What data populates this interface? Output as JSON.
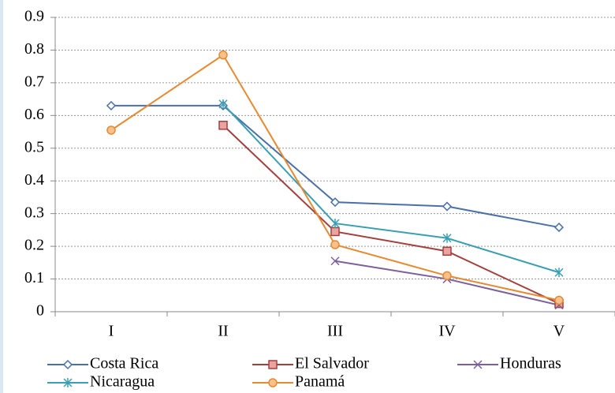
{
  "chart_data": {
    "type": "line",
    "categories": [
      "I",
      "II",
      "III",
      "IV",
      "V"
    ],
    "series": [
      {
        "name": "Costa Rica",
        "color": "#4a70a8",
        "marker": "diamond",
        "values": [
          0.63,
          0.63,
          0.335,
          0.322,
          0.258
        ]
      },
      {
        "name": "El Salvador",
        "color": "#a3403d",
        "marker": "square",
        "values": [
          null,
          0.57,
          0.245,
          0.185,
          0.025
        ]
      },
      {
        "name": "Honduras",
        "color": "#7d5f9e",
        "marker": "x",
        "values": [
          null,
          null,
          0.155,
          0.1,
          0.02
        ]
      },
      {
        "name": "Nicaragua",
        "color": "#3a9fb2",
        "marker": "star",
        "values": [
          null,
          0.635,
          0.27,
          0.225,
          0.12
        ]
      },
      {
        "name": "Panamá",
        "color": "#e58a31",
        "marker": "circle",
        "values": [
          0.555,
          0.785,
          0.205,
          0.11,
          0.035
        ]
      }
    ],
    "ylim": [
      0,
      0.9
    ],
    "yticks": [
      0,
      0.1,
      0.2,
      0.3,
      0.4,
      0.5,
      0.6,
      0.7,
      0.8,
      0.9
    ],
    "grid": true,
    "legend": "bottom"
  }
}
